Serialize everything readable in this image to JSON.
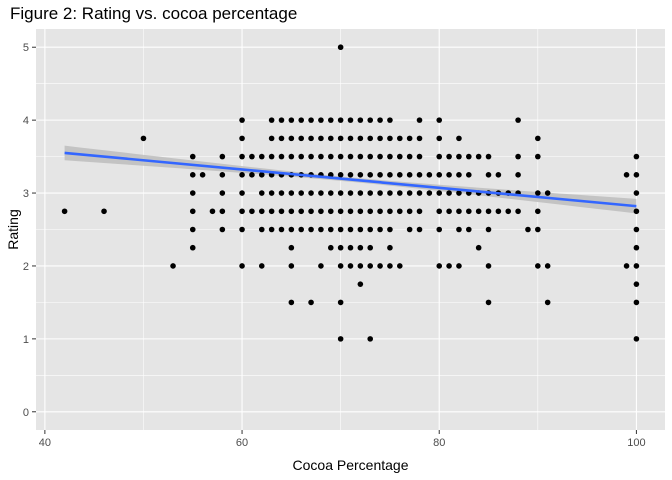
{
  "chart_data": {
    "type": "scatter",
    "title": "Figure 2: Rating vs. cocoa percentage",
    "xlabel": "Cocoa Percentage",
    "ylabel": "Rating",
    "xlim": [
      39.1,
      102.9
    ],
    "ylim": [
      -0.25,
      5.25
    ],
    "x_ticks": [
      40,
      60,
      80,
      100
    ],
    "x_tick_labels": [
      "40",
      "60",
      "80",
      "100"
    ],
    "y_ticks": [
      0,
      1,
      2,
      3,
      4,
      5
    ],
    "y_tick_labels": [
      "0",
      "1",
      "2",
      "3",
      "4",
      "5"
    ],
    "grid": true,
    "panel_background": "#e5e5e5",
    "grid_color": "#ffffff",
    "point_color": "#000000",
    "trend_line": {
      "method": "linear",
      "color": "#3366ff",
      "band_color": "#bdbdbd",
      "x_range": [
        42,
        100
      ],
      "y_start": 3.55,
      "y_end": 2.82,
      "ci_halfwidth_ends": 0.1,
      "ci_halfwidth_center": 0.03
    },
    "points": [
      [
        42,
        2.75
      ],
      [
        46,
        2.75
      ],
      [
        50,
        3.75
      ],
      [
        53,
        2
      ],
      [
        55,
        3.5
      ],
      [
        55,
        3.25
      ],
      [
        55,
        3
      ],
      [
        55,
        2.75
      ],
      [
        55,
        2.5
      ],
      [
        55,
        2.25
      ],
      [
        56,
        3.25
      ],
      [
        57,
        2.75
      ],
      [
        58,
        3.5
      ],
      [
        58,
        3.25
      ],
      [
        58,
        3
      ],
      [
        58,
        2.75
      ],
      [
        58,
        2.5
      ],
      [
        60,
        4
      ],
      [
        60,
        3.75
      ],
      [
        60,
        3.5
      ],
      [
        60,
        3.25
      ],
      [
        60,
        3
      ],
      [
        60,
        2.75
      ],
      [
        60,
        2.5
      ],
      [
        60,
        2
      ],
      [
        61,
        3.5
      ],
      [
        61,
        3.25
      ],
      [
        61,
        2.75
      ],
      [
        62,
        3.5
      ],
      [
        62,
        3.25
      ],
      [
        62,
        3
      ],
      [
        62,
        2.75
      ],
      [
        62,
        2.5
      ],
      [
        62,
        2
      ],
      [
        63,
        4
      ],
      [
        63,
        3.75
      ],
      [
        63,
        3.5
      ],
      [
        63,
        3.25
      ],
      [
        63,
        3
      ],
      [
        63,
        2.75
      ],
      [
        63,
        2.5
      ],
      [
        64,
        4
      ],
      [
        64,
        3.75
      ],
      [
        64,
        3.5
      ],
      [
        64,
        3.25
      ],
      [
        64,
        3
      ],
      [
        64,
        2.75
      ],
      [
        64,
        2.5
      ],
      [
        65,
        4
      ],
      [
        65,
        3.75
      ],
      [
        65,
        3.5
      ],
      [
        65,
        3.25
      ],
      [
        65,
        3
      ],
      [
        65,
        2.75
      ],
      [
        65,
        2.5
      ],
      [
        65,
        2.25
      ],
      [
        65,
        2
      ],
      [
        65,
        1.5
      ],
      [
        66,
        4
      ],
      [
        66,
        3.75
      ],
      [
        66,
        3.5
      ],
      [
        66,
        3.25
      ],
      [
        66,
        3
      ],
      [
        66,
        2.75
      ],
      [
        66,
        2.5
      ],
      [
        67,
        4
      ],
      [
        67,
        3.75
      ],
      [
        67,
        3.5
      ],
      [
        67,
        3.25
      ],
      [
        67,
        3
      ],
      [
        67,
        2.75
      ],
      [
        67,
        2.5
      ],
      [
        67,
        1.5
      ],
      [
        68,
        4
      ],
      [
        68,
        3.75
      ],
      [
        68,
        3.5
      ],
      [
        68,
        3.25
      ],
      [
        68,
        3
      ],
      [
        68,
        2.75
      ],
      [
        68,
        2.5
      ],
      [
        68,
        2
      ],
      [
        69,
        4
      ],
      [
        69,
        3.75
      ],
      [
        69,
        3.5
      ],
      [
        69,
        3.25
      ],
      [
        69,
        3
      ],
      [
        69,
        2.75
      ],
      [
        69,
        2.5
      ],
      [
        69,
        2.25
      ],
      [
        70,
        5
      ],
      [
        70,
        4
      ],
      [
        70,
        3.75
      ],
      [
        70,
        3.5
      ],
      [
        70,
        3.25
      ],
      [
        70,
        3
      ],
      [
        70,
        2.75
      ],
      [
        70,
        2.5
      ],
      [
        70,
        2.25
      ],
      [
        70,
        2
      ],
      [
        70,
        1.5
      ],
      [
        70,
        1
      ],
      [
        71,
        4
      ],
      [
        71,
        3.75
      ],
      [
        71,
        3.5
      ],
      [
        71,
        3.25
      ],
      [
        71,
        3
      ],
      [
        71,
        2.75
      ],
      [
        71,
        2.5
      ],
      [
        71,
        2.25
      ],
      [
        71,
        2
      ],
      [
        72,
        4
      ],
      [
        72,
        3.75
      ],
      [
        72,
        3.5
      ],
      [
        72,
        3.25
      ],
      [
        72,
        3
      ],
      [
        72,
        2.75
      ],
      [
        72,
        2.5
      ],
      [
        72,
        2.25
      ],
      [
        72,
        2
      ],
      [
        72,
        1.75
      ],
      [
        73,
        4
      ],
      [
        73,
        3.75
      ],
      [
        73,
        3.5
      ],
      [
        73,
        3.25
      ],
      [
        73,
        3
      ],
      [
        73,
        2.75
      ],
      [
        73,
        2.5
      ],
      [
        73,
        2.25
      ],
      [
        73,
        2
      ],
      [
        73,
        1
      ],
      [
        74,
        4
      ],
      [
        74,
        3.75
      ],
      [
        74,
        3.5
      ],
      [
        74,
        3.25
      ],
      [
        74,
        3
      ],
      [
        74,
        2.75
      ],
      [
        74,
        2.5
      ],
      [
        74,
        2
      ],
      [
        75,
        4
      ],
      [
        75,
        3.75
      ],
      [
        75,
        3.5
      ],
      [
        75,
        3.25
      ],
      [
        75,
        3
      ],
      [
        75,
        2.75
      ],
      [
        75,
        2.5
      ],
      [
        75,
        2.25
      ],
      [
        75,
        2
      ],
      [
        76,
        3.75
      ],
      [
        76,
        3.5
      ],
      [
        76,
        3.25
      ],
      [
        76,
        3
      ],
      [
        76,
        2.75
      ],
      [
        76,
        2
      ],
      [
        77,
        3.75
      ],
      [
        77,
        3.5
      ],
      [
        77,
        3.25
      ],
      [
        77,
        3
      ],
      [
        77,
        2.75
      ],
      [
        77,
        2.5
      ],
      [
        78,
        4
      ],
      [
        78,
        3.75
      ],
      [
        78,
        3.5
      ],
      [
        78,
        3.25
      ],
      [
        78,
        3
      ],
      [
        78,
        2.75
      ],
      [
        78,
        2.5
      ],
      [
        79,
        3.25
      ],
      [
        79,
        3
      ],
      [
        80,
        4
      ],
      [
        80,
        3.75
      ],
      [
        80,
        3.5
      ],
      [
        80,
        3.25
      ],
      [
        80,
        3
      ],
      [
        80,
        2.75
      ],
      [
        80,
        2.5
      ],
      [
        80,
        2
      ],
      [
        81,
        3.5
      ],
      [
        81,
        3.25
      ],
      [
        81,
        3
      ],
      [
        81,
        2.75
      ],
      [
        81,
        2
      ],
      [
        82,
        3.75
      ],
      [
        82,
        3.5
      ],
      [
        82,
        3.25
      ],
      [
        82,
        3
      ],
      [
        82,
        2.75
      ],
      [
        82,
        2.5
      ],
      [
        82,
        2
      ],
      [
        83,
        3.5
      ],
      [
        83,
        3.25
      ],
      [
        83,
        3
      ],
      [
        83,
        2.75
      ],
      [
        83,
        2.5
      ],
      [
        84,
        3.5
      ],
      [
        84,
        3
      ],
      [
        84,
        2.75
      ],
      [
        84,
        2.25
      ],
      [
        85,
        3.5
      ],
      [
        85,
        3.25
      ],
      [
        85,
        3
      ],
      [
        85,
        2.75
      ],
      [
        85,
        2.5
      ],
      [
        85,
        2
      ],
      [
        85,
        1.5
      ],
      [
        86,
        3.25
      ],
      [
        86,
        3
      ],
      [
        86,
        2.75
      ],
      [
        87,
        3
      ],
      [
        87,
        2.75
      ],
      [
        88,
        4
      ],
      [
        88,
        3.5
      ],
      [
        88,
        3.25
      ],
      [
        88,
        3
      ],
      [
        88,
        2.75
      ],
      [
        89,
        2.5
      ],
      [
        90,
        3.75
      ],
      [
        90,
        3.5
      ],
      [
        90,
        3
      ],
      [
        90,
        2.75
      ],
      [
        90,
        2.5
      ],
      [
        90,
        2
      ],
      [
        91,
        3
      ],
      [
        91,
        2
      ],
      [
        91,
        1.5
      ],
      [
        99,
        3.25
      ],
      [
        99,
        2
      ],
      [
        100,
        3.5
      ],
      [
        100,
        3.25
      ],
      [
        100,
        3
      ],
      [
        100,
        2.75
      ],
      [
        100,
        2.5
      ],
      [
        100,
        2.25
      ],
      [
        100,
        2
      ],
      [
        100,
        1.75
      ],
      [
        100,
        1.5
      ],
      [
        100,
        1
      ]
    ]
  }
}
